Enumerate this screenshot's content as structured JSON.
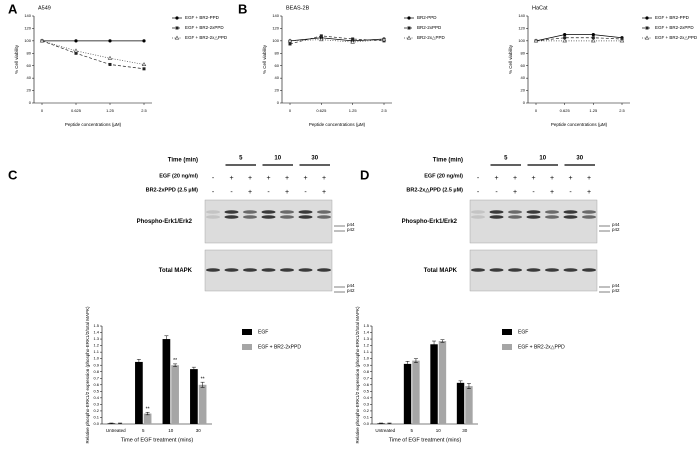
{
  "panel_labels": [
    "A",
    "B",
    "C",
    "D"
  ],
  "chart_data": [
    {
      "type": "line",
      "title": "A549",
      "ylabel": "% Cell viability",
      "xlabel": "Peptide concentrations (µM)",
      "categories": [
        "0",
        "0.625",
        "1.25",
        "2.5"
      ],
      "ylim": [
        0,
        140
      ],
      "yticks": [
        0,
        20,
        40,
        60,
        80,
        100,
        120,
        140
      ],
      "series": [
        {
          "name": "EGF + BR2-PPD",
          "color": "#000000",
          "values": [
            100,
            100,
            100,
            100
          ]
        },
        {
          "name": "EGF + BR2-2xPPD",
          "color": "#222222",
          "values": [
            100,
            80,
            62,
            55
          ]
        },
        {
          "name": "EGF + BR2-2x△PPD",
          "color": "#444444",
          "values": [
            100,
            84,
            72,
            62
          ]
        }
      ]
    },
    {
      "type": "line",
      "title": "BEAS-2B",
      "ylabel": "% Cell viability",
      "xlabel": "Peptide concentrations (µM)",
      "categories": [
        "0",
        "0.625",
        "1.25",
        "2.5"
      ],
      "ylim": [
        0,
        140
      ],
      "yticks": [
        0,
        20,
        40,
        60,
        80,
        100,
        120,
        140
      ],
      "series": [
        {
          "name": "BR2-PPD",
          "color": "#000000",
          "values": [
            100,
            105,
            100,
            103
          ]
        },
        {
          "name": "BR2-2xPPD",
          "color": "#222222",
          "values": [
            95,
            108,
            103,
            100
          ]
        },
        {
          "name": "BR2-2x△PPD",
          "color": "#444444",
          "values": [
            100,
            102,
            98,
            102
          ]
        }
      ]
    },
    {
      "type": "line",
      "title": "HaCat",
      "ylabel": "% Cell viability",
      "xlabel": "Peptide concentrations (µM)",
      "categories": [
        "0",
        "0.625",
        "1.25",
        "2.5"
      ],
      "ylim": [
        0,
        140
      ],
      "yticks": [
        0,
        20,
        40,
        60,
        80,
        100,
        120,
        140
      ],
      "series": [
        {
          "name": "EGF + BR2-PPD",
          "color": "#000000",
          "values": [
            100,
            110,
            110,
            105
          ]
        },
        {
          "name": "EGF + BR2-2xPPD",
          "color": "#222222",
          "values": [
            100,
            105,
            105,
            103
          ]
        },
        {
          "name": "EGF + BR2-2x△PPD",
          "color": "#444444",
          "values": [
            100,
            100,
            100,
            100
          ]
        }
      ]
    },
    {
      "type": "bar",
      "ylabel": "Relative phospho-ERK1/2 expression (phospho-ERK1/2/total MAPK)",
      "xlabel": "Time of EGF treatment (mins)",
      "categories": [
        "Untreated",
        "5",
        "10",
        "30"
      ],
      "ylim": [
        0,
        1.5
      ],
      "yticks": [
        {
          "value": 0,
          "label": "0.0"
        },
        0.1,
        0.2,
        0.3,
        0.4,
        0.5,
        0.6,
        0.7,
        0.8,
        0.9,
        {
          "value": 1,
          "label": "1.0"
        },
        1.1,
        1.2,
        1.3,
        1.4,
        1.5
      ],
      "series": [
        {
          "name": "EGF",
          "color": "#000000",
          "values": [
            0.01,
            0.95,
            1.3,
            0.84
          ],
          "errors": [
            0.005,
            0.04,
            0.05,
            0.03
          ]
        },
        {
          "name": "EGF + BR2-2xPPD",
          "color": "#a6a6a6",
          "values": [
            0.01,
            0.16,
            0.9,
            0.6
          ],
          "errors": [
            0.005,
            0.02,
            0.02,
            0.04
          ],
          "annotations": [
            null,
            "**",
            "**",
            "**"
          ]
        }
      ]
    },
    {
      "type": "bar",
      "ylabel": "Relative phospho-ERK1/2 expression (phospho-ERK1/2/total MAPK)",
      "xlabel": "Time of EGF treatment (mins)",
      "categories": [
        "Untreated",
        "5",
        "10",
        "30"
      ],
      "ylim": [
        0,
        1.5
      ],
      "yticks": [
        {
          "value": 0,
          "label": "0.0"
        },
        0.1,
        0.2,
        0.3,
        0.4,
        0.5,
        0.6,
        0.7,
        0.8,
        0.9,
        {
          "value": 1,
          "label": "1.0"
        },
        1.1,
        1.2,
        1.3,
        1.4,
        1.5
      ],
      "series": [
        {
          "name": "EGF",
          "color": "#000000",
          "values": [
            0.01,
            0.92,
            1.22,
            0.63
          ],
          "errors": [
            0.005,
            0.04,
            0.05,
            0.03
          ]
        },
        {
          "name": "EGF + BR2-2x△PPD",
          "color": "#a6a6a6",
          "values": [
            0.01,
            0.97,
            1.27,
            0.58
          ],
          "errors": [
            0.005,
            0.03,
            0.02,
            0.04
          ]
        }
      ]
    }
  ],
  "blots": [
    {
      "time_label": "Time (min)",
      "times": [
        "5",
        "10",
        "30"
      ],
      "egf_label": "EGF (20 ng/ml)",
      "egf_signs": [
        "-",
        "+",
        "+",
        "+",
        "+",
        "+",
        "+"
      ],
      "peptide_label": "BR2-2xPPD (2.5 µM)",
      "peptide_signs": [
        "-",
        "-",
        "+",
        "-",
        "+",
        "-",
        "+"
      ],
      "rows": [
        "Phospho-Erk1/Erk2",
        "Total MAPK"
      ],
      "markers": [
        "p44",
        "p42"
      ]
    },
    {
      "time_label": "Time (min)",
      "times": [
        "5",
        "10",
        "30"
      ],
      "egf_label": "EGF (20 ng/ml)",
      "egf_signs": [
        "-",
        "+",
        "+",
        "+",
        "+",
        "+",
        "+"
      ],
      "peptide_label": "BR2-2x△PPD (2.5 µM)",
      "peptide_signs": [
        "-",
        "-",
        "+",
        "-",
        "+",
        "-",
        "+"
      ],
      "rows": [
        "Phospho-Erk1/Erk2",
        "Total MAPK"
      ],
      "markers": [
        "p44",
        "p42"
      ]
    }
  ]
}
